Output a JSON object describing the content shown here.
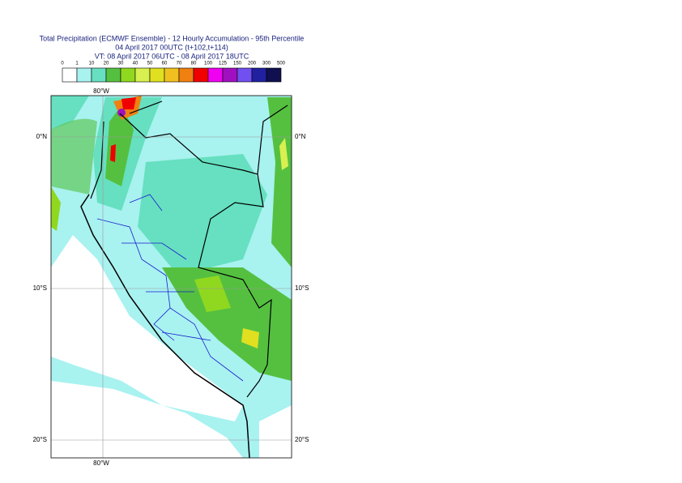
{
  "header": {
    "title": "Total Precipitation (ECMWF Ensemble) - 12 Hourly Accumulation - 95th Percentile",
    "run": "04 April 2017 00UTC (t+102,t+114)",
    "valid": "VT: 08 April 2017 06UTC - 08 April 2017 18UTC"
  },
  "legend": {
    "levels": [
      0,
      1,
      10,
      20,
      30,
      40,
      50,
      60,
      70,
      80,
      100,
      125,
      150,
      200,
      300,
      500
    ],
    "colors": [
      "#ffffff",
      "#a8f2f0",
      "#66e0c0",
      "#55c040",
      "#90d820",
      "#d8f050",
      "#e0e020",
      "#f0c020",
      "#f08010",
      "#f00000",
      "#f000f0",
      "#a010c0",
      "#7050f0",
      "#2020a0",
      "#101050"
    ]
  },
  "map": {
    "lon_top": "80°W",
    "lon_bottom": "80°W",
    "lat_labels": [
      {
        "left": "0°N",
        "right": "0°N"
      },
      {
        "left": "10°S",
        "right": "10°S"
      },
      {
        "left": "20°S",
        "right": "20°S"
      }
    ]
  }
}
